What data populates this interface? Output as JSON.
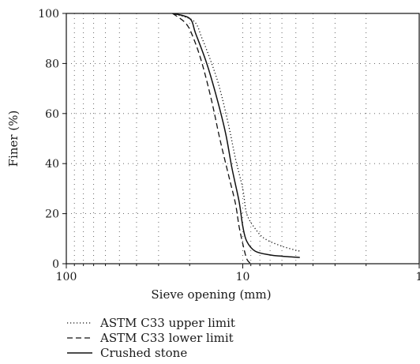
{
  "chart_data": {
    "type": "line",
    "title": "",
    "xlabel": "Sieve opening (mm)",
    "ylabel": "Finer (%)",
    "x_scale": "log",
    "x_reversed": true,
    "xlim": [
      100,
      1
    ],
    "ylim": [
      0,
      100
    ],
    "x_ticks": [
      "100",
      "10",
      "1"
    ],
    "y_ticks": [
      "0",
      "20",
      "40",
      "60",
      "80",
      "100"
    ],
    "grid": "dotted",
    "legend_position": "bottom-left",
    "series": [
      {
        "name": "ASTM C33 upper limit",
        "style": "dotted",
        "points": [
          [
            25,
            100
          ],
          [
            19,
            97
          ],
          [
            17,
            90
          ],
          [
            15,
            80
          ],
          [
            13.5,
            70
          ],
          [
            12,
            55
          ],
          [
            11,
            42
          ],
          [
            10,
            30
          ],
          [
            9.5,
            20
          ],
          [
            8.5,
            14
          ],
          [
            7.5,
            10
          ],
          [
            6,
            7
          ],
          [
            4.75,
            5
          ]
        ]
      },
      {
        "name": "ASTM C33 lower limit",
        "style": "dashed",
        "points": [
          [
            25,
            100
          ],
          [
            21,
            96
          ],
          [
            19,
            90
          ],
          [
            17,
            80
          ],
          [
            15,
            65
          ],
          [
            13.5,
            50
          ],
          [
            12,
            35
          ],
          [
            11,
            24
          ],
          [
            10.5,
            15
          ],
          [
            10,
            8
          ],
          [
            9.5,
            2
          ],
          [
            9,
            0
          ]
        ]
      },
      {
        "name": "Crushed stone",
        "style": "solid",
        "points": [
          [
            25,
            100
          ],
          [
            20,
            98
          ],
          [
            18.5,
            92
          ],
          [
            16,
            80
          ],
          [
            14,
            66
          ],
          [
            12.5,
            52
          ],
          [
            11.5,
            38
          ],
          [
            10.5,
            25
          ],
          [
            10,
            15
          ],
          [
            9.5,
            9
          ],
          [
            8.5,
            5
          ],
          [
            7,
            3.5
          ],
          [
            6,
            3
          ],
          [
            4.75,
            2.5
          ]
        ]
      }
    ]
  }
}
